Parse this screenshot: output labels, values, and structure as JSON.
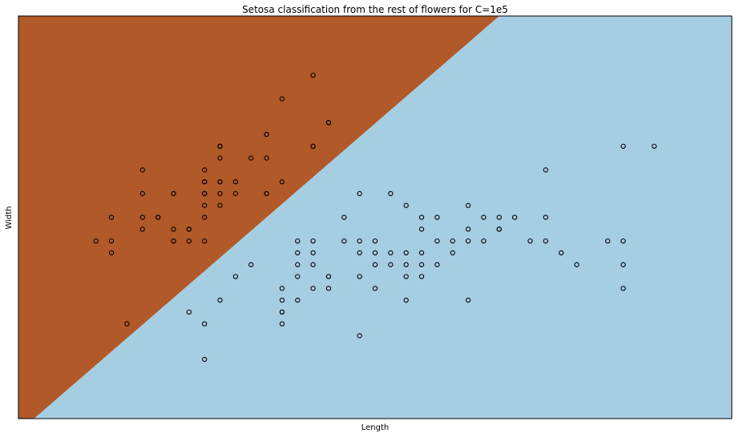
{
  "chart_data": {
    "type": "scatter",
    "title": "Setosa classification from the rest of flowers for C=1e5",
    "xlabel": "Length",
    "ylabel": "Width",
    "xlim": [
      3.8,
      8.4
    ],
    "ylim": [
      1.5,
      4.9
    ],
    "xticks": [],
    "yticks": [],
    "grid": false,
    "decision_boundary": {
      "description": "linear boundary separating setosa region (upper-left, brown) from rest (lower-right, light blue)",
      "points": [
        [
          3.9,
          1.5
        ],
        [
          6.9,
          4.9
        ]
      ]
    },
    "regions": {
      "setosa_color": "#b15928",
      "rest_color": "#a6cee3"
    },
    "marker": {
      "shape": "circle",
      "edge": "#000000",
      "face": "none"
    },
    "x": [
      4.3,
      4.4,
      4.4,
      4.4,
      4.5,
      4.6,
      4.6,
      4.6,
      4.6,
      4.7,
      4.7,
      4.8,
      4.8,
      4.8,
      4.8,
      4.8,
      4.9,
      4.9,
      4.9,
      5.0,
      5.0,
      5.0,
      5.0,
      5.0,
      5.0,
      5.0,
      5.0,
      5.1,
      5.1,
      5.1,
      5.1,
      5.1,
      5.1,
      5.1,
      5.1,
      5.2,
      5.2,
      5.3,
      5.4,
      5.4,
      5.4,
      5.4,
      5.4,
      5.5,
      5.5,
      5.7,
      5.7,
      5.7,
      5.8,
      5.8,
      4.9,
      5.0,
      5.0,
      5.1,
      5.2,
      5.3,
      5.5,
      5.5,
      5.5,
      5.5,
      5.5,
      5.6,
      5.6,
      5.6,
      5.6,
      5.6,
      5.7,
      5.7,
      5.7,
      5.7,
      5.8,
      5.8,
      5.8,
      5.9,
      5.9,
      6.0,
      6.0,
      6.0,
      6.0,
      6.0,
      6.1,
      6.1,
      6.1,
      6.1,
      6.2,
      6.2,
      6.2,
      6.3,
      6.3,
      6.3,
      6.3,
      6.3,
      6.4,
      6.4,
      6.4,
      6.4,
      6.4,
      6.5,
      6.5,
      6.5,
      6.6,
      6.6,
      6.7,
      6.7,
      6.7,
      6.7,
      6.8,
      6.8,
      6.9,
      6.9,
      6.9,
      7.0,
      7.1,
      7.2,
      7.2,
      7.2,
      7.3,
      7.4,
      7.6,
      7.7,
      7.7,
      7.7,
      7.7,
      7.9
    ],
    "y": [
      3.0,
      2.9,
      3.0,
      3.2,
      2.3,
      3.1,
      3.2,
      3.4,
      3.6,
      3.2,
      3.2,
      3.0,
      3.1,
      3.4,
      3.4,
      3.0,
      3.0,
      3.1,
      3.1,
      3.0,
      3.2,
      3.3,
      3.4,
      3.5,
      3.5,
      3.6,
      3.4,
      3.3,
      3.4,
      3.5,
      3.7,
      3.8,
      3.8,
      3.5,
      3.8,
      3.4,
      3.5,
      3.7,
      3.4,
      3.7,
      3.9,
      3.9,
      3.4,
      3.5,
      4.2,
      3.8,
      4.4,
      3.8,
      4.0,
      4.0,
      2.4,
      2.0,
      2.3,
      2.5,
      2.7,
      2.8,
      2.3,
      2.4,
      2.5,
      2.6,
      2.4,
      2.5,
      2.7,
      2.8,
      2.9,
      3.0,
      2.6,
      2.8,
      2.9,
      3.0,
      2.7,
      2.7,
      2.6,
      3.0,
      3.2,
      2.2,
      2.7,
      2.9,
      3.0,
      3.4,
      2.8,
      2.9,
      3.0,
      2.6,
      2.8,
      2.9,
      3.4,
      2.5,
      2.8,
      2.9,
      3.3,
      2.7,
      2.8,
      2.9,
      3.1,
      3.2,
      2.7,
      2.8,
      3.0,
      3.2,
      2.9,
      3.0,
      3.0,
      3.1,
      3.3,
      2.5,
      3.0,
      3.2,
      3.1,
      3.1,
      3.2,
      3.2,
      3.0,
      3.0,
      3.2,
      3.6,
      2.9,
      2.8,
      3.0,
      3.8,
      2.6,
      2.8,
      3.0,
      3.8
    ]
  }
}
